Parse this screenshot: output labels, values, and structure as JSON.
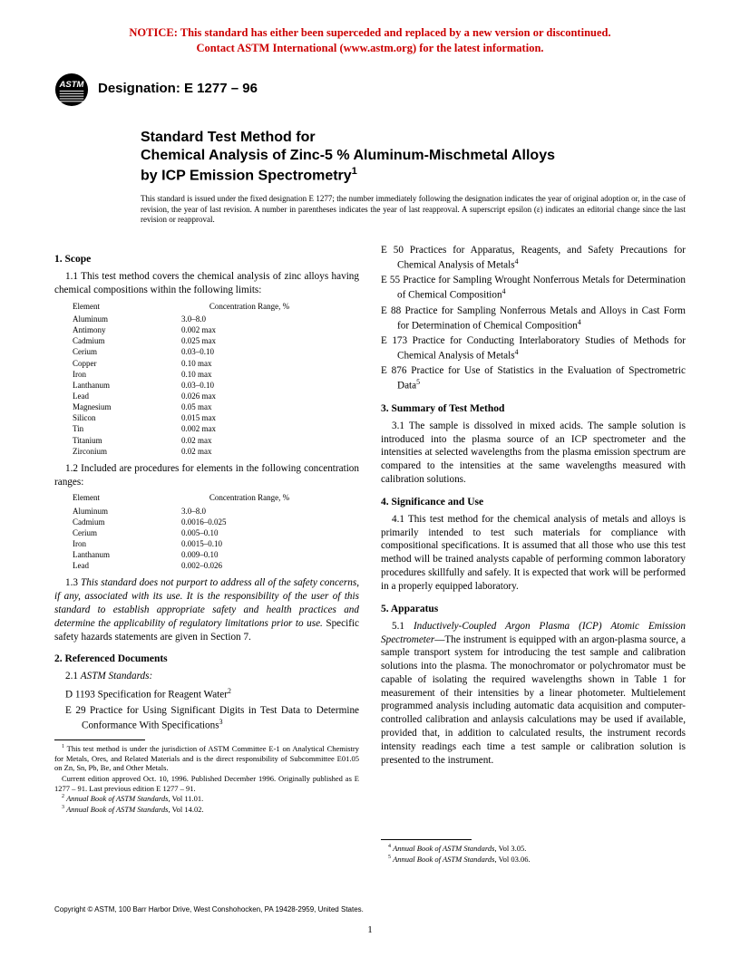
{
  "notice": {
    "line1": "NOTICE: This standard has either been superceded and replaced by a new version or discontinued.",
    "line2": "Contact ASTM International (www.astm.org) for the latest information.",
    "color": "#cc0000"
  },
  "designation": "Designation: E 1277 – 96",
  "title": {
    "line1": "Standard Test Method for",
    "line2": "Chemical Analysis of Zinc-5 % Aluminum-Mischmetal Alloys",
    "line3": "by ICP Emission Spectrometry"
  },
  "issue_note": "This standard is issued under the fixed designation E 1277; the number immediately following the designation indicates the year of original adoption or, in the case of revision, the year of last revision. A number in parentheses indicates the year of last reapproval. A superscript epsilon (ε) indicates an editorial change since the last revision or reapproval.",
  "sec1": {
    "head": "1. Scope",
    "p1": "1.1 This test method covers the chemical analysis of zinc alloys having chemical compositions within the following limits:",
    "table1": {
      "h1": "Element",
      "h2": "Concentration Range, %",
      "rows": [
        [
          "Aluminum",
          "3.0–8.0"
        ],
        [
          "Antimony",
          "0.002 max"
        ],
        [
          "Cadmium",
          "0.025 max"
        ],
        [
          "Cerium",
          "0.03–0.10"
        ],
        [
          "Copper",
          "0.10 max"
        ],
        [
          "Iron",
          "0.10 max"
        ],
        [
          "Lanthanum",
          "0.03–0.10"
        ],
        [
          "Lead",
          "0.026 max"
        ],
        [
          "Magnesium",
          "0.05 max"
        ],
        [
          "Silicon",
          "0.015 max"
        ],
        [
          "Tin",
          "0.002 max"
        ],
        [
          "Titanium",
          "0.02 max"
        ],
        [
          "Zirconium",
          "0.02 max"
        ]
      ]
    },
    "p2": "1.2 Included are procedures for elements in the following concentration ranges:",
    "table2": {
      "h1": "Element",
      "h2": "Concentration Range, %",
      "rows": [
        [
          "Aluminum",
          "3.0–8.0"
        ],
        [
          "Cadmium",
          "0.0016–0.025"
        ],
        [
          "Cerium",
          "0.005–0.10"
        ],
        [
          "Iron",
          "0.0015–0.10"
        ],
        [
          "Lanthanum",
          "0.009–0.10"
        ],
        [
          "Lead",
          "0.002–0.026"
        ]
      ]
    },
    "p3a": "1.3 ",
    "p3b": "This standard does not purport to address all of the safety concerns, if any, associated with its use. It is the responsibility of the user of this standard to establish appropriate safety and health practices and determine the applicability of regulatory limitations prior to use.",
    "p3c": " Specific safety hazards statements are given in Section 7."
  },
  "sec2": {
    "head": "2. Referenced Documents",
    "p1a": "2.1 ",
    "p1b": "ASTM Standards:",
    "items": [
      "D 1193  Specification for Reagent Water",
      "E 29  Practice for Using Significant Digits in Test Data to Determine Conformance With Specifications"
    ],
    "items_right": [
      "E 50  Practices for Apparatus, Reagents, and Safety Precautions for Chemical Analysis of Metals",
      "E 55  Practice for Sampling Wrought Nonferrous Metals for Determination of Chemical Composition",
      "E 88  Practice for Sampling Nonferrous Metals and Alloys in Cast Form for Determination of Chemical Composition",
      "E 173  Practice for Conducting Interlaboratory Studies of Methods for Chemical Analysis of Metals",
      "E 876  Practice for Use of Statistics in the Evaluation of Spectrometric Data"
    ]
  },
  "sec3": {
    "head": "3. Summary of Test Method",
    "p1": "3.1 The sample is dissolved in mixed acids. The sample solution is introduced into the plasma source of an ICP spectrometer and the intensities at selected wavelengths from the plasma emission spectrum are compared to the intensities at the same wavelengths measured with calibration solutions."
  },
  "sec4": {
    "head": "4. Significance and Use",
    "p1": "4.1 This test method for the chemical analysis of metals and alloys is primarily intended to test such materials for compliance with compositional specifications. It is assumed that all those who use this test method will be trained analysts capable of performing common laboratory procedures skillfully and safely. It is expected that work will be performed in a properly equipped laboratory."
  },
  "sec5": {
    "head": "5. Apparatus",
    "p1a": "5.1 ",
    "p1b": "Inductively-Coupled Argon Plasma (ICP) Atomic Emission Spectrometer",
    "p1c": "—The instrument is equipped with an argon-plasma source, a sample transport system for introducing the test sample and calibration solutions into the plasma. The monochromator or polychromator must be capable of isolating the required wavelengths shown in Table 1 for measurement of their intensities by a linear photometer. Multielement programmed analysis including automatic data acquisition and computer-controlled calibration and anlaysis calculations may be used if available, provided that, in addition to calculated results, the instrument records intensity readings each time a test sample or calibration solution is presented to the instrument."
  },
  "footnotes_left": {
    "f1": "This test method is under the jurisdiction of ASTM Committee E-1 on Analytical Chemistry for Metals, Ores, and Related Materials and is the direct responsibility of Subcommittee E01.05 on Zn, Sn, Pb, Be, and Other Metals.",
    "f1b": "Current edition approved Oct. 10, 1996. Published December 1996. Originally published as E 1277 – 91. Last previous edition E 1277 – 91.",
    "f2": "Annual Book of ASTM Standards",
    "f2v": ", Vol 11.01.",
    "f3": "Annual Book of ASTM Standards",
    "f3v": ", Vol 14.02."
  },
  "footnotes_right": {
    "f4": "Annual Book of ASTM Standards",
    "f4v": ", Vol 3.05.",
    "f5": "Annual Book of ASTM Standards",
    "f5v": ", Vol 03.06."
  },
  "copyright": "Copyright © ASTM, 100 Barr Harbor Drive, West Conshohocken, PA 19428-2959, United States.",
  "pagenum": "1"
}
